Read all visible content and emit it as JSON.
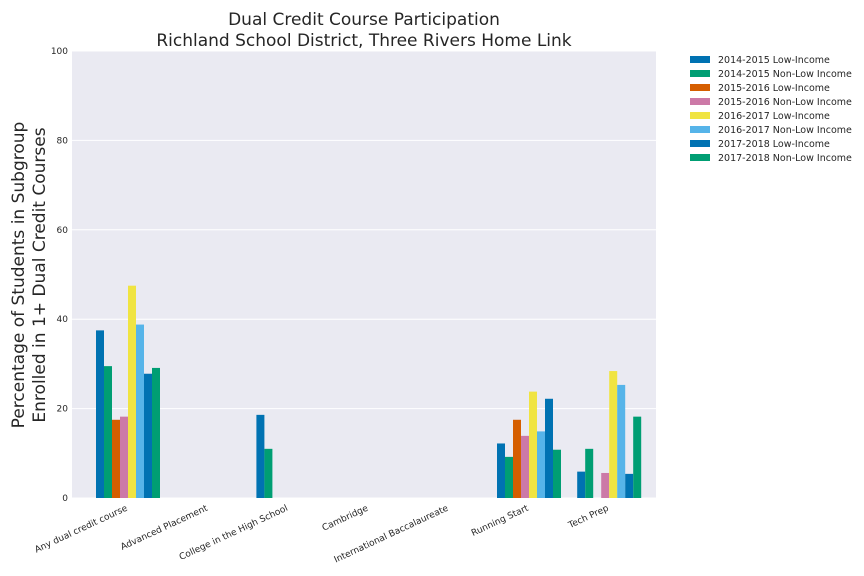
{
  "chart_data": {
    "type": "bar",
    "title": [
      "Dual Credit Course Participation",
      "Richland School District, Three Rivers Home Link"
    ],
    "ylabel": [
      "Percentage of Students in Subgroup",
      "Enrolled in 1+ Dual Credit Courses"
    ],
    "xlabel": "",
    "ylim": [
      0,
      100
    ],
    "yticks": [
      "0",
      "20",
      "40",
      "60",
      "80",
      "100"
    ],
    "grid": true,
    "legend_position": "outside-top-right",
    "categories": [
      "Any dual credit course",
      "Advanced Placement",
      "College in the High School",
      "Cambridge",
      "International Baccalaureate",
      "Running Start",
      "Tech Prep"
    ],
    "series": [
      {
        "name": "2014-2015 Low-Income",
        "color": "#0072b2",
        "values": [
          37.5,
          null,
          18.6,
          null,
          null,
          12.2,
          5.9
        ]
      },
      {
        "name": "2014-2015 Non-Low Income",
        "color": "#009e73",
        "values": [
          29.5,
          null,
          11.0,
          null,
          null,
          9.2,
          11.0
        ]
      },
      {
        "name": "2015-2016 Low-Income",
        "color": "#d55e00",
        "values": [
          17.5,
          null,
          null,
          null,
          null,
          17.5,
          null
        ]
      },
      {
        "name": "2015-2016 Non-Low Income",
        "color": "#cc79a7",
        "values": [
          18.2,
          null,
          null,
          null,
          null,
          13.9,
          5.6
        ]
      },
      {
        "name": "2016-2017 Low-Income",
        "color": "#f0e442",
        "values": [
          47.5,
          null,
          null,
          null,
          null,
          23.8,
          28.4
        ]
      },
      {
        "name": "2016-2017 Non-Low Income",
        "color": "#56b4e9",
        "values": [
          38.8,
          null,
          null,
          null,
          null,
          14.9,
          25.3
        ]
      },
      {
        "name": "2017-2018 Low-Income",
        "color": "#0072b2",
        "values": [
          27.8,
          null,
          null,
          null,
          null,
          22.2,
          5.4
        ]
      },
      {
        "name": "2017-2018 Non-Low Income",
        "color": "#009e73",
        "values": [
          29.1,
          null,
          null,
          null,
          null,
          10.8,
          18.2
        ]
      }
    ]
  }
}
